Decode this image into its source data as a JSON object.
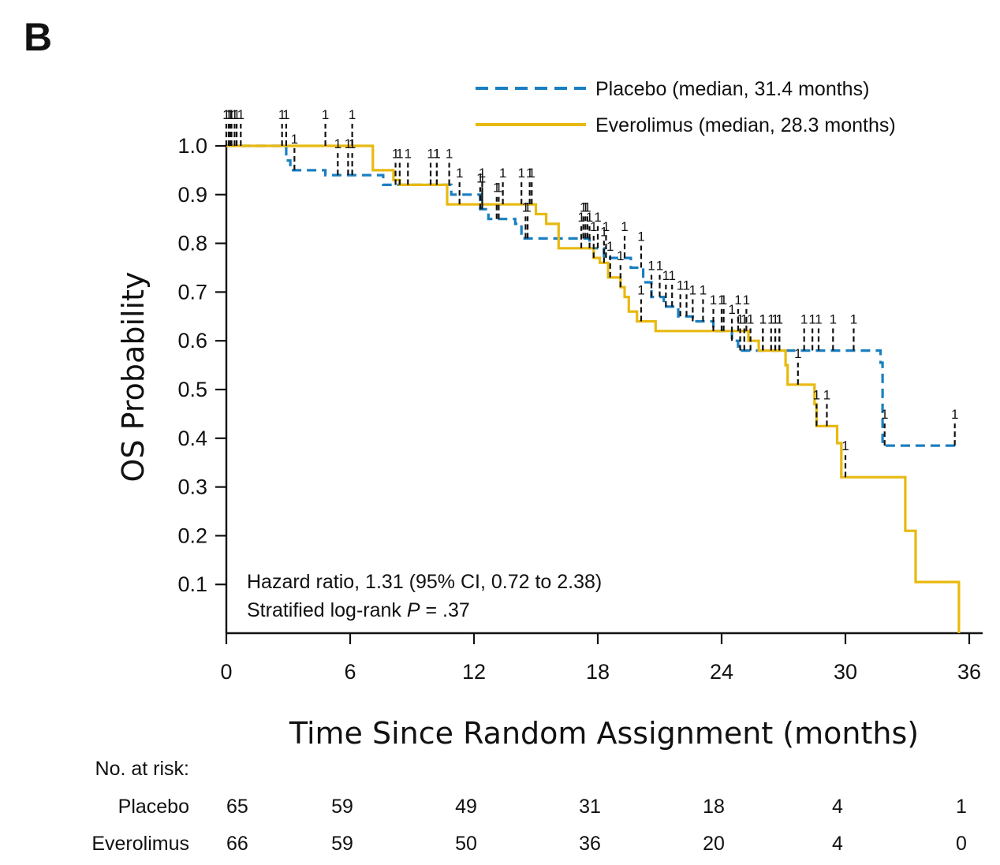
{
  "panel_label": "B",
  "legend": {
    "placebo_label": "Placebo (median, 31.4 months)",
    "everolimus_label": "Everolimus (median, 28.3 months)"
  },
  "annotation": {
    "line1": "Hazard ratio, 1.31 (95% CI, 0.72 to 2.38)",
    "line2_prefix": "Stratified log-rank ",
    "line2_italic": "P",
    "line2_suffix": " = .37"
  },
  "risk_table": {
    "header": "No. at risk:",
    "rows": [
      {
        "label": "Placebo",
        "values": [
          "65",
          "59",
          "49",
          "31",
          "18",
          "4",
          "1"
        ]
      },
      {
        "label": "Everolimus",
        "values": [
          "66",
          "59",
          "50",
          "36",
          "20",
          "4",
          "0"
        ]
      }
    ]
  },
  "colors": {
    "placebo": "#1a7fc1",
    "everolimus": "#e8b90f",
    "axis": "#111111"
  },
  "chart_data": {
    "type": "line",
    "xlabel": "Time Since Random Assignment (months)",
    "ylabel": "OS Probability",
    "xlim": [
      0,
      36
    ],
    "ylim": [
      0,
      1.0
    ],
    "xticks": [
      "0",
      "6",
      "12",
      "18",
      "24",
      "30",
      "36"
    ],
    "yticks": [
      "0.1",
      "0.2",
      "0.3",
      "0.4",
      "0.5",
      "0.6",
      "0.7",
      "0.8",
      "0.9",
      "1.0"
    ],
    "grid": false,
    "legend_position": "top-right",
    "series": [
      {
        "name": "Placebo (median, 31.4 months)",
        "style": "dashed-step",
        "points": [
          [
            0,
            1.0
          ],
          [
            2.9,
            0.97
          ],
          [
            3.1,
            0.95
          ],
          [
            4.8,
            0.94
          ],
          [
            7.4,
            0.94
          ],
          [
            7.6,
            0.92
          ],
          [
            10.3,
            0.92
          ],
          [
            10.9,
            0.9
          ],
          [
            12.3,
            0.87
          ],
          [
            12.7,
            0.85
          ],
          [
            14.0,
            0.84
          ],
          [
            14.3,
            0.81
          ],
          [
            15.6,
            0.81
          ],
          [
            17.6,
            0.79
          ],
          [
            18.3,
            0.77
          ],
          [
            19.3,
            0.77
          ],
          [
            19.6,
            0.75
          ],
          [
            20.2,
            0.72
          ],
          [
            20.6,
            0.69
          ],
          [
            21.2,
            0.67
          ],
          [
            21.9,
            0.65
          ],
          [
            22.5,
            0.65
          ],
          [
            22.6,
            0.64
          ],
          [
            23.4,
            0.64
          ],
          [
            23.6,
            0.62
          ],
          [
            24.5,
            0.6
          ],
          [
            24.8,
            0.58
          ],
          [
            27.6,
            0.58
          ],
          [
            31.3,
            0.58
          ],
          [
            31.7,
            0.555
          ],
          [
            31.8,
            0.385
          ],
          [
            35.5,
            0.385
          ]
        ]
      },
      {
        "name": "Everolimus (median, 28.3 months)",
        "style": "solid-step",
        "points": [
          [
            0,
            1.0
          ],
          [
            6.9,
            1.0
          ],
          [
            7.1,
            0.95
          ],
          [
            8.1,
            0.93
          ],
          [
            8.4,
            0.92
          ],
          [
            10.5,
            0.92
          ],
          [
            10.7,
            0.88
          ],
          [
            14.9,
            0.88
          ],
          [
            15.0,
            0.86
          ],
          [
            15.5,
            0.84
          ],
          [
            16.1,
            0.79
          ],
          [
            17.5,
            0.79
          ],
          [
            17.8,
            0.77
          ],
          [
            18.1,
            0.76
          ],
          [
            18.5,
            0.73
          ],
          [
            19.1,
            0.71
          ],
          [
            19.3,
            0.69
          ],
          [
            19.5,
            0.66
          ],
          [
            19.9,
            0.64
          ],
          [
            20.8,
            0.62
          ],
          [
            23.8,
            0.62
          ],
          [
            25.3,
            0.6
          ],
          [
            25.8,
            0.58
          ],
          [
            26.9,
            0.58
          ],
          [
            27.1,
            0.55
          ],
          [
            27.2,
            0.51
          ],
          [
            28.3,
            0.51
          ],
          [
            28.5,
            0.47
          ],
          [
            28.6,
            0.425
          ],
          [
            29.5,
            0.425
          ],
          [
            29.6,
            0.39
          ],
          [
            29.8,
            0.32
          ],
          [
            32.7,
            0.32
          ],
          [
            32.9,
            0.21
          ],
          [
            33.3,
            0.21
          ],
          [
            33.4,
            0.105
          ],
          [
            35.5,
            0.105
          ],
          [
            35.5,
            0.0
          ]
        ]
      }
    ]
  }
}
